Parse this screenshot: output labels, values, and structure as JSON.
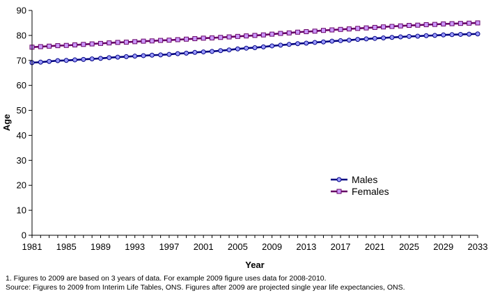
{
  "chart_data": {
    "type": "line",
    "xlabel": "Year",
    "ylabel": "Age",
    "ylim": [
      0,
      90
    ],
    "y_ticks": [
      0,
      10,
      20,
      30,
      40,
      50,
      60,
      70,
      80,
      90
    ],
    "x_ticks": [
      1981,
      1985,
      1989,
      1993,
      1997,
      2001,
      2005,
      2009,
      2013,
      2017,
      2021,
      2025,
      2029,
      2033
    ],
    "xlim": [
      1981,
      2033
    ],
    "grid": false,
    "legend_position": "right",
    "x": [
      1981,
      1982,
      1983,
      1984,
      1985,
      1986,
      1987,
      1988,
      1989,
      1990,
      1991,
      1992,
      1993,
      1994,
      1995,
      1996,
      1997,
      1998,
      1999,
      2000,
      2001,
      2002,
      2003,
      2004,
      2005,
      2006,
      2007,
      2008,
      2009,
      2010,
      2011,
      2012,
      2013,
      2014,
      2015,
      2016,
      2017,
      2018,
      2019,
      2020,
      2021,
      2022,
      2023,
      2024,
      2025,
      2026,
      2027,
      2028,
      2029,
      2030,
      2031,
      2032,
      2033
    ],
    "series": [
      {
        "name": "Males",
        "color": "#000080",
        "marker": "circle",
        "values": [
          69.1,
          69.3,
          69.6,
          69.9,
          70.0,
          70.2,
          70.4,
          70.6,
          70.8,
          71.1,
          71.3,
          71.5,
          71.7,
          71.9,
          72.1,
          72.2,
          72.4,
          72.7,
          72.9,
          73.2,
          73.4,
          73.6,
          73.9,
          74.2,
          74.6,
          74.9,
          75.1,
          75.4,
          75.8,
          76.1,
          76.4,
          76.7,
          76.9,
          77.2,
          77.4,
          77.7,
          77.9,
          78.1,
          78.4,
          78.6,
          78.8,
          79.0,
          79.2,
          79.4,
          79.6,
          79.7,
          79.9,
          80.0,
          80.2,
          80.3,
          80.4,
          80.5,
          80.6
        ]
      },
      {
        "name": "Females",
        "color": "#660066",
        "marker": "square",
        "values": [
          75.3,
          75.5,
          75.7,
          75.9,
          76.0,
          76.2,
          76.4,
          76.6,
          76.8,
          77.0,
          77.2,
          77.3,
          77.5,
          77.7,
          77.8,
          78.0,
          78.1,
          78.3,
          78.5,
          78.7,
          78.9,
          79.0,
          79.2,
          79.4,
          79.6,
          79.8,
          80.0,
          80.2,
          80.5,
          80.8,
          81.0,
          81.3,
          81.5,
          81.7,
          82.0,
          82.2,
          82.4,
          82.6,
          82.8,
          83.0,
          83.2,
          83.4,
          83.6,
          83.8,
          84.0,
          84.1,
          84.3,
          84.4,
          84.6,
          84.7,
          84.8,
          84.9,
          85.0
        ]
      }
    ]
  },
  "footnotes": {
    "note1": "1. Figures to 2009 are based on 3 years of data. For example 2009 figure uses data for 2008-2010.",
    "source": "Source: Figures to 2009 from Interim Life Tables, ONS. Figures after 2009 are projected single year life expectancies, ONS."
  }
}
